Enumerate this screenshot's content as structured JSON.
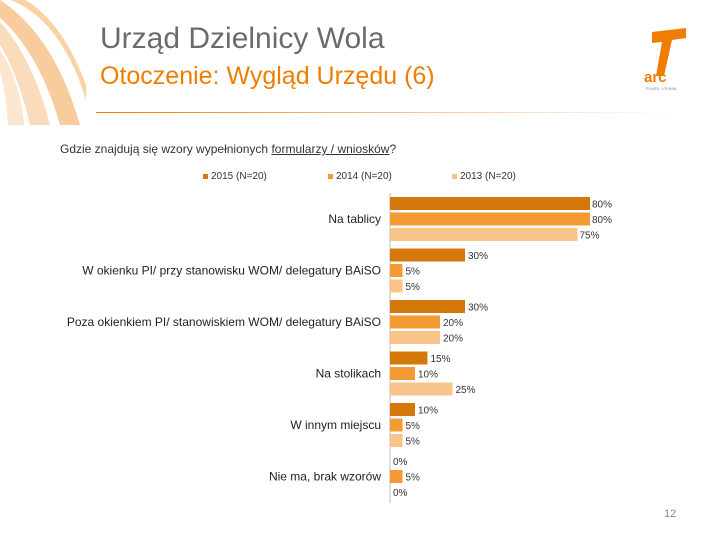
{
  "header": {
    "title": "Urząd Dzielnicy Wola",
    "subtitle": "Otoczenie: Wygląd Urzędu (6)",
    "logo_text": "arc",
    "logo_tagline": "RYNEK I OPINIA"
  },
  "question": {
    "prefix": "Gdzie znajdują się wzory wypełnionych ",
    "underlined": "formularzy / wniosków",
    "suffix": "?"
  },
  "page_number": "12",
  "colors": {
    "accent": "#ef7d00",
    "title_gray": "#6b6b6b",
    "series_2015": "#d4780c",
    "series_2014": "#f39a33",
    "series_2013": "#f8c48a"
  },
  "chart_data": {
    "type": "bar",
    "orientation": "horizontal",
    "categories": [
      "Na tablicy",
      "W okienku PI/ przy stanowisku WOM/ delegatury BAiSO",
      "Poza okienkiem PI/ stanowiskiem WOM/ delegatury BAiSO",
      "Na stolikach",
      "W innym miejscu",
      "Nie ma, brak wzorów"
    ],
    "series": [
      {
        "name": "2015 (N=20)",
        "values": [
          80,
          30,
          30,
          15,
          10,
          0
        ],
        "labels": [
          "80%",
          "30%",
          "30%",
          "15%",
          "10%",
          "0%"
        ]
      },
      {
        "name": "2014 (N=20)",
        "values": [
          80,
          5,
          20,
          10,
          5,
          5
        ],
        "labels": [
          "80%",
          "5%",
          "20%",
          "10%",
          "5%",
          "5%"
        ]
      },
      {
        "name": "2013 (N=20)",
        "values": [
          75,
          5,
          20,
          25,
          5,
          0
        ],
        "labels": [
          "75%",
          "5%",
          "20%",
          "25%",
          "5%",
          "0%"
        ]
      }
    ],
    "unit": "%",
    "xlim": [
      0,
      100
    ],
    "grid": false,
    "legend_position": "top"
  }
}
